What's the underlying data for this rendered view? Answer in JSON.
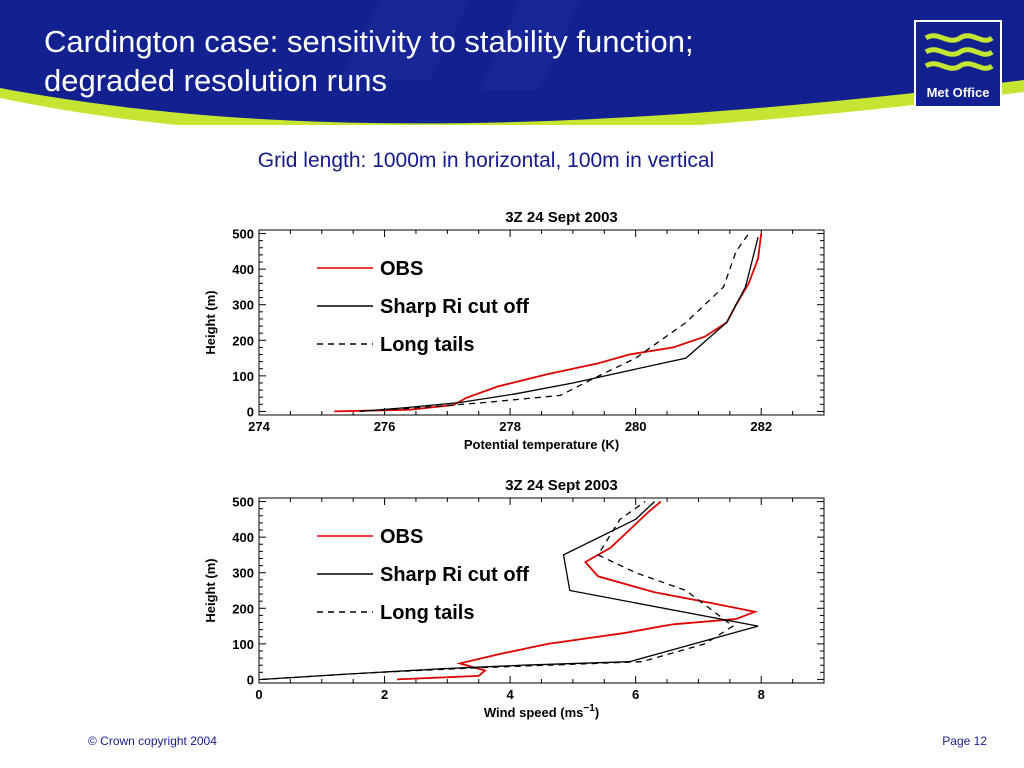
{
  "slide": {
    "title_line1": "Cardington case: sensitivity to stability function;",
    "title_line2": "degraded resolution runs",
    "subtitle": "Grid length: 1000m in horizontal, 100m in vertical",
    "logo_text": "Met Office",
    "footer_copyright": "© Crown copyright 2004",
    "footer_page": "Page 12"
  },
  "colors": {
    "header_blue": "#13208f",
    "accent_green": "#c6e533",
    "obs": "#e00000",
    "model": "#000000"
  },
  "chart_data": [
    {
      "type": "line",
      "title": "3Z 24 Sept 2003",
      "xlabel": "Potential temperature (K)",
      "xlabel_sup": "",
      "xlabel_end": "",
      "ylabel": "Height (m)",
      "xlim": [
        274,
        283
      ],
      "ylim": [
        -10,
        510
      ],
      "xticks": [
        274,
        276,
        278,
        280,
        282
      ],
      "yticks": [
        0,
        100,
        200,
        300,
        400,
        500
      ],
      "grid": false,
      "legend_position": "top-left",
      "series": [
        {
          "name": "OBS",
          "style": "solid",
          "color": "#e00000",
          "x": [
            275.2,
            276.4,
            277.1,
            277.3,
            277.8,
            278.6,
            279.4,
            279.9,
            280.6,
            281.1,
            281.45,
            281.6,
            281.8,
            281.95,
            282.0
          ],
          "y": [
            0,
            5,
            18,
            38,
            70,
            105,
            135,
            160,
            180,
            210,
            250,
            300,
            360,
            430,
            500
          ]
        },
        {
          "name": "Sharp Ri cut off",
          "style": "solid",
          "color": "#000000",
          "x": [
            275.6,
            276.3,
            277.2,
            278.1,
            279.0,
            279.9,
            280.8,
            281.45,
            281.75,
            281.95
          ],
          "y": [
            0,
            10,
            25,
            50,
            80,
            115,
            150,
            250,
            350,
            490
          ]
        },
        {
          "name": "Long tails",
          "style": "dashed",
          "color": "#000000",
          "x": [
            275.6,
            276.5,
            277.6,
            278.8,
            279.3,
            280.0,
            280.8,
            281.4,
            281.6,
            281.8
          ],
          "y": [
            0,
            10,
            25,
            45,
            90,
            150,
            250,
            350,
            450,
            500
          ]
        }
      ]
    },
    {
      "type": "line",
      "title": "3Z 24 Sept 2003",
      "xlabel": "Wind speed (ms",
      "xlabel_sup": "−1",
      "xlabel_end": ")",
      "ylabel": "Height (m)",
      "xlim": [
        0,
        9
      ],
      "ylim": [
        -10,
        510
      ],
      "xticks": [
        0,
        2,
        4,
        6,
        8
      ],
      "yticks": [
        0,
        100,
        200,
        300,
        400,
        500
      ],
      "grid": false,
      "legend_position": "top-left",
      "series": [
        {
          "name": "OBS",
          "style": "solid",
          "color": "#e00000",
          "x": [
            2.2,
            3.5,
            3.6,
            3.2,
            3.8,
            4.6,
            5.8,
            6.6,
            7.6,
            7.9,
            7.2,
            6.3,
            5.4,
            5.2,
            5.6,
            5.9,
            6.2,
            6.4
          ],
          "y": [
            0,
            10,
            25,
            45,
            70,
            100,
            130,
            155,
            170,
            190,
            215,
            245,
            290,
            330,
            370,
            420,
            470,
            500
          ]
        },
        {
          "name": "Sharp Ri cut off",
          "style": "solid",
          "color": "#000000",
          "x": [
            0.05,
            1.4,
            2.9,
            4.2,
            5.9,
            7.95,
            4.95,
            4.85,
            6.0,
            6.3
          ],
          "y": [
            0,
            15,
            30,
            40,
            50,
            150,
            250,
            350,
            450,
            500
          ]
        },
        {
          "name": "Long tails",
          "style": "dashed",
          "color": "#000000",
          "x": [
            0.05,
            1.7,
            3.5,
            4.6,
            6.1,
            7.1,
            7.55,
            6.8,
            6.0,
            5.4,
            5.75,
            6.15
          ],
          "y": [
            0,
            18,
            33,
            40,
            50,
            100,
            150,
            250,
            300,
            350,
            450,
            500
          ]
        }
      ]
    }
  ]
}
